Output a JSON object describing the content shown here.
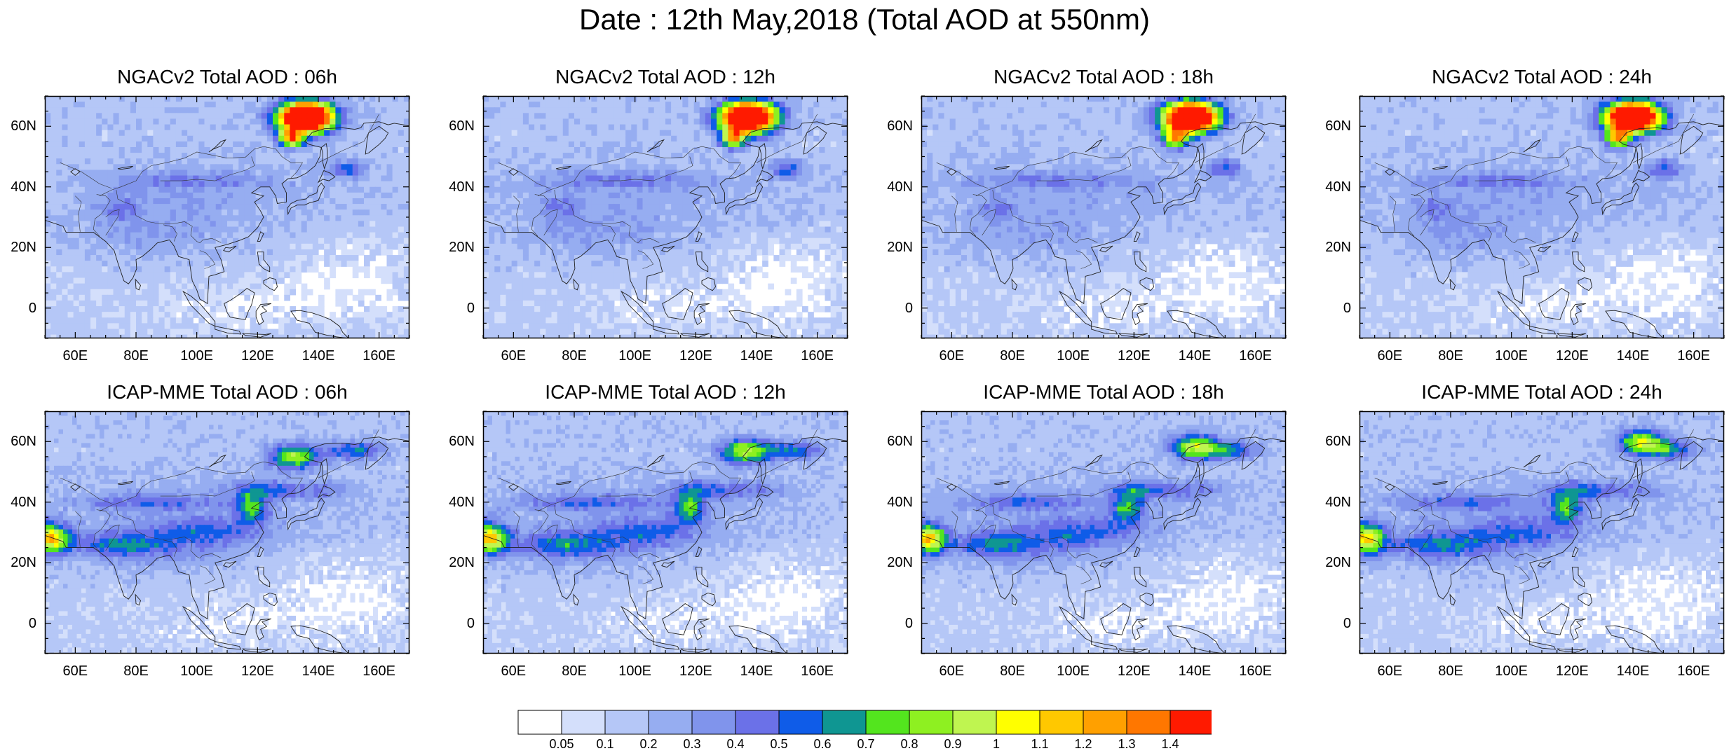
{
  "title": "Date : 12th May,2018 (Total AOD at 550nm)",
  "panels": [
    {
      "title": "NGACv2 Total AOD : 06h",
      "model": "ngac",
      "hour": 6
    },
    {
      "title": "NGACv2 Total AOD : 12h",
      "model": "ngac",
      "hour": 12
    },
    {
      "title": "NGACv2 Total AOD : 18h",
      "model": "ngac",
      "hour": 18
    },
    {
      "title": "NGACv2 Total AOD : 24h",
      "model": "ngac",
      "hour": 24
    },
    {
      "title": "ICAP-MME Total AOD : 06h",
      "model": "icap",
      "hour": 6
    },
    {
      "title": "ICAP-MME Total AOD : 12h",
      "model": "icap",
      "hour": 12
    },
    {
      "title": "ICAP-MME Total AOD : 18h",
      "model": "icap",
      "hour": 18
    },
    {
      "title": "ICAP-MME Total AOD : 24h",
      "model": "icap",
      "hour": 24
    }
  ],
  "map": {
    "lon_range": [
      50,
      170
    ],
    "lat_range": [
      -10,
      70
    ],
    "lat_ticks": [
      {
        "value": 60,
        "label": "60N"
      },
      {
        "value": 40,
        "label": "40N"
      },
      {
        "value": 20,
        "label": "20N"
      },
      {
        "value": 0,
        "label": "0"
      }
    ],
    "lon_ticks": [
      {
        "value": 60,
        "label": "60E"
      },
      {
        "value": 80,
        "label": "80E"
      },
      {
        "value": 100,
        "label": "100E"
      },
      {
        "value": 120,
        "label": "120E"
      },
      {
        "value": 140,
        "label": "140E"
      },
      {
        "value": 160,
        "label": "160E"
      }
    ]
  },
  "colorbar": {
    "levels": [
      "0.05",
      "0.1",
      "0.2",
      "0.3",
      "0.4",
      "0.5",
      "0.6",
      "0.7",
      "0.8",
      "0.9",
      "1",
      "1.1",
      "1.2",
      "1.3",
      "1.4"
    ],
    "colors": [
      "#ffffff",
      "#d4dffb",
      "#b5c7f7",
      "#96adf1",
      "#8094ec",
      "#6b71e8",
      "#0f5ce8",
      "#0f9692",
      "#53e51e",
      "#8ef021",
      "#bff550",
      "#ffff00",
      "#ffc800",
      "#ffa000",
      "#ff7700",
      "#ff1a00"
    ]
  }
}
